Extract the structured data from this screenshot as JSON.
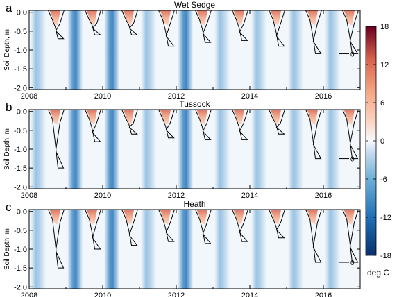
{
  "chart_data": [
    {
      "type": "heatmap",
      "letter": "a",
      "title": "Wet Sedge",
      "ylabel": "Soil Depth, m",
      "xlim": [
        2008,
        2017
      ],
      "ylim": [
        -2.05,
        0.05
      ],
      "xticks": [
        "2008",
        "2010",
        "2012",
        "2014",
        "2016"
      ],
      "yticks": [
        "0.0",
        "-0.5",
        "-1.0",
        "-1.5",
        "-2.0"
      ],
      "contour_labels": [
        "0"
      ],
      "zero_isotherm_base_depth_m": [
        -0.7,
        -0.6,
        -0.6,
        -0.9,
        -0.8,
        -0.75,
        -0.9,
        -1.1,
        -1.1
      ]
    },
    {
      "type": "heatmap",
      "letter": "b",
      "title": "Tussock",
      "ylabel": "Soil Depth, m",
      "xlim": [
        2008,
        2017
      ],
      "ylim": [
        -2.05,
        0.05
      ],
      "xticks": [
        "2008",
        "2010",
        "2012",
        "2014",
        "2016"
      ],
      "yticks": [
        "0.0",
        "-0.5",
        "-1.0",
        "-1.5",
        "-2.0"
      ],
      "contour_labels": [
        "0"
      ],
      "zero_isotherm_base_depth_m": [
        -1.5,
        -0.8,
        -0.6,
        -0.7,
        -0.75,
        -0.75,
        -0.6,
        -1.25,
        -1.25
      ]
    },
    {
      "type": "heatmap",
      "letter": "c",
      "title": "Heath",
      "ylabel": "Soil Depth, m",
      "xlim": [
        2008,
        2017
      ],
      "ylim": [
        -2.05,
        0.05
      ],
      "xticks": [
        "2008",
        "2010",
        "2012",
        "2014",
        "2016"
      ],
      "yticks": [
        "0.0",
        "-0.5",
        "-1.0",
        "-1.5",
        "-2.0"
      ],
      "contour_labels": [
        "0"
      ],
      "zero_isotherm_base_depth_m": [
        -1.5,
        -1.0,
        -0.9,
        -0.8,
        -0.85,
        -0.8,
        -0.7,
        -1.35,
        -1.35
      ]
    }
  ],
  "colorbar": {
    "range": [
      -18,
      18
    ],
    "ticks": [
      "18",
      "12",
      "6",
      "0",
      "-6",
      "-12",
      "-18"
    ],
    "label": "deg C",
    "colors": {
      "cold_extreme": "#08306b",
      "cold_strong": "#2171b5",
      "cold_mid": "#6baed6",
      "cold_light": "#c6dbef",
      "neutral": "#f7fbff",
      "warm_light": "#fcd5c4",
      "warm_mid": "#f4a582",
      "warm_strong": "#d6604d",
      "warm_extreme": "#67001f"
    }
  }
}
